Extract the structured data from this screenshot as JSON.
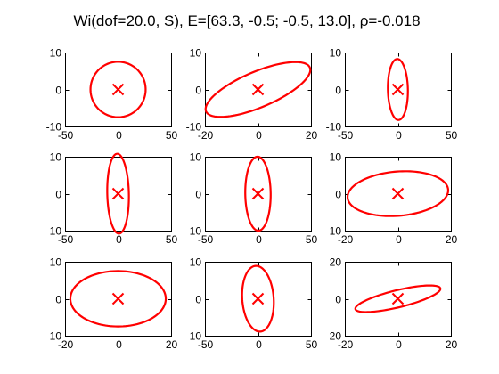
{
  "title": {
    "prefix": "Wi(dof=20.0, S), E=[63.3, -0.5; -0.5, 13.0], ",
    "rho_symbol": "ρ",
    "suffix": "=-0.018"
  },
  "colors": {
    "ellipse": "#ff0000",
    "axes": "#000000",
    "background": "#ffffff"
  },
  "chart_data": [
    {
      "type": "scatter",
      "marker": "x",
      "center": [
        0,
        0
      ],
      "xlim": [
        -50,
        50
      ],
      "ylim": [
        -10,
        10
      ],
      "xticks": [
        -50,
        0,
        50
      ],
      "yticks": [
        -10,
        0,
        10
      ],
      "grid": false,
      "ellipse": {
        "a": 26,
        "b": 7.5,
        "angle_deg": 0
      }
    },
    {
      "type": "scatter",
      "marker": "x",
      "center": [
        0,
        0
      ],
      "xlim": [
        -20,
        20
      ],
      "ylim": [
        -10,
        10
      ],
      "xticks": [
        -20,
        0,
        20
      ],
      "yticks": [
        -10,
        0,
        10
      ],
      "grid": false,
      "ellipse": {
        "a": 20.5,
        "b": 5.0,
        "angle_deg": 16
      }
    },
    {
      "type": "scatter",
      "marker": "x",
      "center": [
        0,
        0
      ],
      "xlim": [
        -50,
        50
      ],
      "ylim": [
        -10,
        10
      ],
      "xticks": [
        -50,
        0,
        50
      ],
      "yticks": [
        -10,
        0,
        10
      ],
      "grid": false,
      "ellipse": {
        "a": 8.2,
        "b": 9.5,
        "angle_deg": 79
      }
    },
    {
      "type": "scatter",
      "marker": "x",
      "center": [
        0,
        0
      ],
      "xlim": [
        -50,
        50
      ],
      "ylim": [
        -10,
        10
      ],
      "xticks": [
        -50,
        0,
        50
      ],
      "yticks": [
        -10,
        0,
        10
      ],
      "grid": false,
      "ellipse": {
        "a": 11.0,
        "b": 10.0,
        "angle_deg": -63
      }
    },
    {
      "type": "scatter",
      "marker": "x",
      "center": [
        0,
        0
      ],
      "xlim": [
        -50,
        50
      ],
      "ylim": [
        -10,
        10
      ],
      "xticks": [
        -50,
        0,
        50
      ],
      "yticks": [
        -10,
        0,
        10
      ],
      "grid": false,
      "ellipse": {
        "a": 10.0,
        "b": 12.0,
        "angle_deg": 85
      }
    },
    {
      "type": "scatter",
      "marker": "x",
      "center": [
        0,
        0
      ],
      "xlim": [
        -20,
        20
      ],
      "ylim": [
        -10,
        10
      ],
      "xticks": [
        -20,
        0,
        20
      ],
      "yticks": [
        -10,
        0,
        10
      ],
      "grid": false,
      "ellipse": {
        "a": 19.0,
        "b": 6.0,
        "angle_deg": 3
      }
    },
    {
      "type": "scatter",
      "marker": "x",
      "center": [
        0,
        0
      ],
      "xlim": [
        -20,
        20
      ],
      "ylim": [
        -10,
        10
      ],
      "xticks": [
        -20,
        0,
        20
      ],
      "yticks": [
        -10,
        0,
        10
      ],
      "grid": false,
      "ellipse": {
        "a": 18.0,
        "b": 7.5,
        "angle_deg": 0
      }
    },
    {
      "type": "scatter",
      "marker": "x",
      "center": [
        0,
        0
      ],
      "xlim": [
        -50,
        50
      ],
      "ylim": [
        -10,
        10
      ],
      "xticks": [
        -50,
        0,
        50
      ],
      "yticks": [
        -10,
        0,
        10
      ],
      "grid": false,
      "ellipse": {
        "a": 8.8,
        "b": 15.0,
        "angle_deg": 84
      }
    },
    {
      "type": "scatter",
      "marker": "x",
      "center": [
        0,
        0
      ],
      "xlim": [
        -20,
        20
      ],
      "ylim": [
        -20,
        20
      ],
      "xticks": [
        -20,
        0,
        20
      ],
      "yticks": [
        -20,
        0,
        20
      ],
      "grid": false,
      "ellipse": {
        "a": 17.0,
        "b": 4.5,
        "angle_deg": 20
      }
    }
  ]
}
